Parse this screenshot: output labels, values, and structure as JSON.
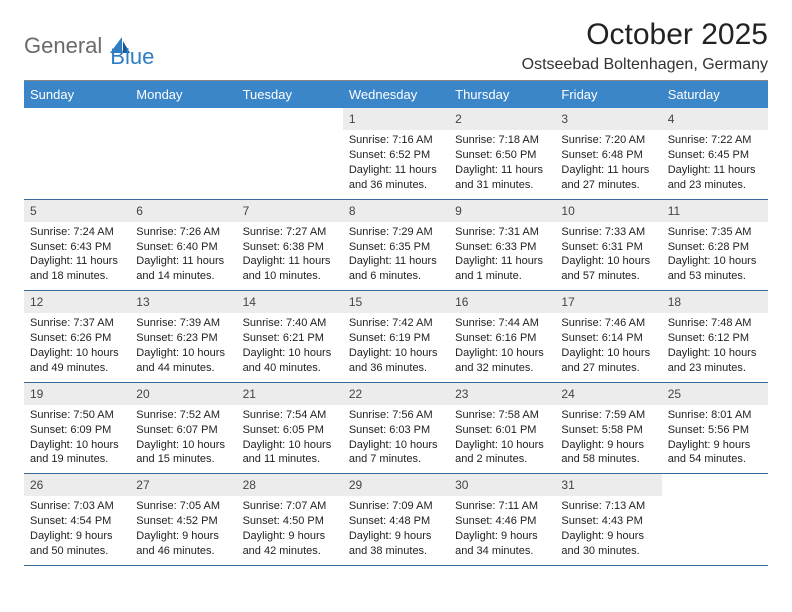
{
  "colors": {
    "header_bar": "#3a86c8",
    "week_border": "#3a6a9a",
    "daynum_bg": "#ececec",
    "logo_gray": "#6a6a6a",
    "logo_blue": "#2f7ec4"
  },
  "logo": {
    "part1": "General",
    "part2": "Blue"
  },
  "title": "October 2025",
  "location": "Ostseebad Boltenhagen, Germany",
  "weekdays": [
    "Sunday",
    "Monday",
    "Tuesday",
    "Wednesday",
    "Thursday",
    "Friday",
    "Saturday"
  ],
  "weeks": [
    [
      {
        "empty": true
      },
      {
        "empty": true
      },
      {
        "empty": true
      },
      {
        "n": "1",
        "sr": "Sunrise: 7:16 AM",
        "ss": "Sunset: 6:52 PM",
        "d1": "Daylight: 11 hours",
        "d2": "and 36 minutes."
      },
      {
        "n": "2",
        "sr": "Sunrise: 7:18 AM",
        "ss": "Sunset: 6:50 PM",
        "d1": "Daylight: 11 hours",
        "d2": "and 31 minutes."
      },
      {
        "n": "3",
        "sr": "Sunrise: 7:20 AM",
        "ss": "Sunset: 6:48 PM",
        "d1": "Daylight: 11 hours",
        "d2": "and 27 minutes."
      },
      {
        "n": "4",
        "sr": "Sunrise: 7:22 AM",
        "ss": "Sunset: 6:45 PM",
        "d1": "Daylight: 11 hours",
        "d2": "and 23 minutes."
      }
    ],
    [
      {
        "n": "5",
        "sr": "Sunrise: 7:24 AM",
        "ss": "Sunset: 6:43 PM",
        "d1": "Daylight: 11 hours",
        "d2": "and 18 minutes."
      },
      {
        "n": "6",
        "sr": "Sunrise: 7:26 AM",
        "ss": "Sunset: 6:40 PM",
        "d1": "Daylight: 11 hours",
        "d2": "and 14 minutes."
      },
      {
        "n": "7",
        "sr": "Sunrise: 7:27 AM",
        "ss": "Sunset: 6:38 PM",
        "d1": "Daylight: 11 hours",
        "d2": "and 10 minutes."
      },
      {
        "n": "8",
        "sr": "Sunrise: 7:29 AM",
        "ss": "Sunset: 6:35 PM",
        "d1": "Daylight: 11 hours",
        "d2": "and 6 minutes."
      },
      {
        "n": "9",
        "sr": "Sunrise: 7:31 AM",
        "ss": "Sunset: 6:33 PM",
        "d1": "Daylight: 11 hours",
        "d2": "and 1 minute."
      },
      {
        "n": "10",
        "sr": "Sunrise: 7:33 AM",
        "ss": "Sunset: 6:31 PM",
        "d1": "Daylight: 10 hours",
        "d2": "and 57 minutes."
      },
      {
        "n": "11",
        "sr": "Sunrise: 7:35 AM",
        "ss": "Sunset: 6:28 PM",
        "d1": "Daylight: 10 hours",
        "d2": "and 53 minutes."
      }
    ],
    [
      {
        "n": "12",
        "sr": "Sunrise: 7:37 AM",
        "ss": "Sunset: 6:26 PM",
        "d1": "Daylight: 10 hours",
        "d2": "and 49 minutes."
      },
      {
        "n": "13",
        "sr": "Sunrise: 7:39 AM",
        "ss": "Sunset: 6:23 PM",
        "d1": "Daylight: 10 hours",
        "d2": "and 44 minutes."
      },
      {
        "n": "14",
        "sr": "Sunrise: 7:40 AM",
        "ss": "Sunset: 6:21 PM",
        "d1": "Daylight: 10 hours",
        "d2": "and 40 minutes."
      },
      {
        "n": "15",
        "sr": "Sunrise: 7:42 AM",
        "ss": "Sunset: 6:19 PM",
        "d1": "Daylight: 10 hours",
        "d2": "and 36 minutes."
      },
      {
        "n": "16",
        "sr": "Sunrise: 7:44 AM",
        "ss": "Sunset: 6:16 PM",
        "d1": "Daylight: 10 hours",
        "d2": "and 32 minutes."
      },
      {
        "n": "17",
        "sr": "Sunrise: 7:46 AM",
        "ss": "Sunset: 6:14 PM",
        "d1": "Daylight: 10 hours",
        "d2": "and 27 minutes."
      },
      {
        "n": "18",
        "sr": "Sunrise: 7:48 AM",
        "ss": "Sunset: 6:12 PM",
        "d1": "Daylight: 10 hours",
        "d2": "and 23 minutes."
      }
    ],
    [
      {
        "n": "19",
        "sr": "Sunrise: 7:50 AM",
        "ss": "Sunset: 6:09 PM",
        "d1": "Daylight: 10 hours",
        "d2": "and 19 minutes."
      },
      {
        "n": "20",
        "sr": "Sunrise: 7:52 AM",
        "ss": "Sunset: 6:07 PM",
        "d1": "Daylight: 10 hours",
        "d2": "and 15 minutes."
      },
      {
        "n": "21",
        "sr": "Sunrise: 7:54 AM",
        "ss": "Sunset: 6:05 PM",
        "d1": "Daylight: 10 hours",
        "d2": "and 11 minutes."
      },
      {
        "n": "22",
        "sr": "Sunrise: 7:56 AM",
        "ss": "Sunset: 6:03 PM",
        "d1": "Daylight: 10 hours",
        "d2": "and 7 minutes."
      },
      {
        "n": "23",
        "sr": "Sunrise: 7:58 AM",
        "ss": "Sunset: 6:01 PM",
        "d1": "Daylight: 10 hours",
        "d2": "and 2 minutes."
      },
      {
        "n": "24",
        "sr": "Sunrise: 7:59 AM",
        "ss": "Sunset: 5:58 PM",
        "d1": "Daylight: 9 hours",
        "d2": "and 58 minutes."
      },
      {
        "n": "25",
        "sr": "Sunrise: 8:01 AM",
        "ss": "Sunset: 5:56 PM",
        "d1": "Daylight: 9 hours",
        "d2": "and 54 minutes."
      }
    ],
    [
      {
        "n": "26",
        "sr": "Sunrise: 7:03 AM",
        "ss": "Sunset: 4:54 PM",
        "d1": "Daylight: 9 hours",
        "d2": "and 50 minutes."
      },
      {
        "n": "27",
        "sr": "Sunrise: 7:05 AM",
        "ss": "Sunset: 4:52 PM",
        "d1": "Daylight: 9 hours",
        "d2": "and 46 minutes."
      },
      {
        "n": "28",
        "sr": "Sunrise: 7:07 AM",
        "ss": "Sunset: 4:50 PM",
        "d1": "Daylight: 9 hours",
        "d2": "and 42 minutes."
      },
      {
        "n": "29",
        "sr": "Sunrise: 7:09 AM",
        "ss": "Sunset: 4:48 PM",
        "d1": "Daylight: 9 hours",
        "d2": "and 38 minutes."
      },
      {
        "n": "30",
        "sr": "Sunrise: 7:11 AM",
        "ss": "Sunset: 4:46 PM",
        "d1": "Daylight: 9 hours",
        "d2": "and 34 minutes."
      },
      {
        "n": "31",
        "sr": "Sunrise: 7:13 AM",
        "ss": "Sunset: 4:43 PM",
        "d1": "Daylight: 9 hours",
        "d2": "and 30 minutes."
      },
      {
        "empty": true
      }
    ]
  ]
}
